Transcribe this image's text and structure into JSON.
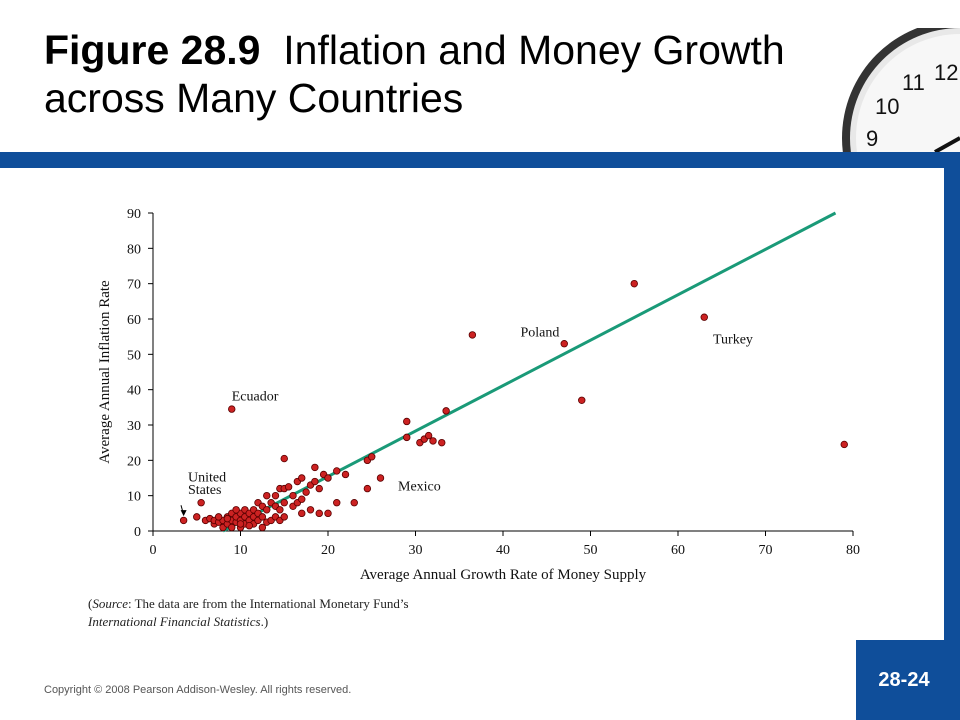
{
  "header": {
    "title_bold": "Figure 28.9",
    "title_rest": "Inflation and Money Growth across Many Countries"
  },
  "source": {
    "line1_prefix": "(",
    "line1_label": "Source",
    "line1_rest": ": The data are from the International Monetary Fund’s",
    "line2_italic": "International Financial Statistics",
    "line2_end": ".)"
  },
  "footer": {
    "copyright": "Copyright © 2008 Pearson Addison-Wesley. All rights reserved.",
    "slide_number": "28-24"
  },
  "colors": {
    "band": "#0f4e9a",
    "point": "#cc2222",
    "line": "#1a9a78"
  },
  "icons": [
    "clock-image"
  ],
  "chart_data": {
    "type": "scatter",
    "xlabel": "Average Annual Growth Rate of Money Supply",
    "ylabel": "Average Annual Inflation Rate",
    "xlim": [
      0,
      80
    ],
    "ylim": [
      0,
      90
    ],
    "xticks": [
      0,
      10,
      20,
      30,
      40,
      50,
      60,
      70,
      80
    ],
    "yticks": [
      0,
      10,
      20,
      30,
      40,
      50,
      60,
      70,
      80,
      90
    ],
    "fit_line": [
      [
        8,
        0
      ],
      [
        78,
        90
      ]
    ],
    "labels": [
      {
        "text": "United",
        "x": 4,
        "y": 14
      },
      {
        "text": "States",
        "x": 4,
        "y": 10.5
      },
      {
        "text": "Ecuador",
        "x": 9,
        "y": 37
      },
      {
        "text": "Poland",
        "x": 42,
        "y": 55
      },
      {
        "text": "Turkey",
        "x": 64,
        "y": 53
      },
      {
        "text": "Mexico",
        "x": 28,
        "y": 11.5
      }
    ],
    "points": [
      [
        3.5,
        3
      ],
      [
        5,
        4
      ],
      [
        5.5,
        8
      ],
      [
        6,
        3
      ],
      [
        6.5,
        3.5
      ],
      [
        7,
        2
      ],
      [
        7,
        3
      ],
      [
        7.5,
        2.5
      ],
      [
        8,
        1
      ],
      [
        8,
        3
      ],
      [
        8.5,
        2
      ],
      [
        8.5,
        4
      ],
      [
        9,
        1
      ],
      [
        9,
        3
      ],
      [
        9,
        5
      ],
      [
        9.5,
        2.5
      ],
      [
        9.5,
        4
      ],
      [
        10,
        1
      ],
      [
        10,
        3
      ],
      [
        10,
        5
      ],
      [
        10.5,
        2
      ],
      [
        10.5,
        4
      ],
      [
        10.5,
        6
      ],
      [
        11,
        3
      ],
      [
        11,
        5
      ],
      [
        11.5,
        2
      ],
      [
        11.5,
        4
      ],
      [
        11.5,
        6
      ],
      [
        12,
        3
      ],
      [
        12,
        5
      ],
      [
        12,
        8
      ],
      [
        12.5,
        1
      ],
      [
        12.5,
        4
      ],
      [
        12.5,
        7
      ],
      [
        13,
        2.5
      ],
      [
        13,
        6
      ],
      [
        13,
        10
      ],
      [
        13.5,
        3
      ],
      [
        13.5,
        8
      ],
      [
        14,
        4
      ],
      [
        14,
        7
      ],
      [
        14,
        10
      ],
      [
        14.5,
        3
      ],
      [
        14.5,
        6
      ],
      [
        14.5,
        12
      ],
      [
        15,
        4
      ],
      [
        15,
        8
      ],
      [
        15,
        12
      ],
      [
        15.5,
        12.5
      ],
      [
        16,
        7
      ],
      [
        16,
        10
      ],
      [
        16.5,
        8
      ],
      [
        16.5,
        14
      ],
      [
        17,
        9
      ],
      [
        17,
        15
      ],
      [
        17,
        5
      ],
      [
        17.5,
        11
      ],
      [
        18,
        6
      ],
      [
        18,
        13
      ],
      [
        18.5,
        14
      ],
      [
        18.5,
        18
      ],
      [
        19,
        12
      ],
      [
        19,
        5
      ],
      [
        19.5,
        16
      ],
      [
        20,
        15
      ],
      [
        20,
        5
      ],
      [
        21,
        17
      ],
      [
        21,
        8
      ],
      [
        22,
        16
      ],
      [
        23,
        8
      ],
      [
        24.5,
        20
      ],
      [
        24.5,
        12
      ],
      [
        25,
        21
      ],
      [
        26,
        15
      ],
      [
        29,
        26.5
      ],
      [
        29,
        31
      ],
      [
        30.5,
        25
      ],
      [
        31,
        26
      ],
      [
        31.5,
        27
      ],
      [
        32,
        25.5
      ],
      [
        33,
        25
      ],
      [
        33.5,
        34
      ],
      [
        9,
        34.5
      ],
      [
        15,
        20.5
      ],
      [
        36.5,
        55.5
      ],
      [
        47,
        53
      ],
      [
        49,
        37
      ],
      [
        55,
        70
      ],
      [
        63,
        60.5
      ],
      [
        79,
        24.5
      ],
      [
        8.5,
        3.5
      ],
      [
        9.5,
        6
      ],
      [
        10,
        2
      ],
      [
        11,
        1.5
      ],
      [
        7.5,
        4
      ]
    ]
  }
}
